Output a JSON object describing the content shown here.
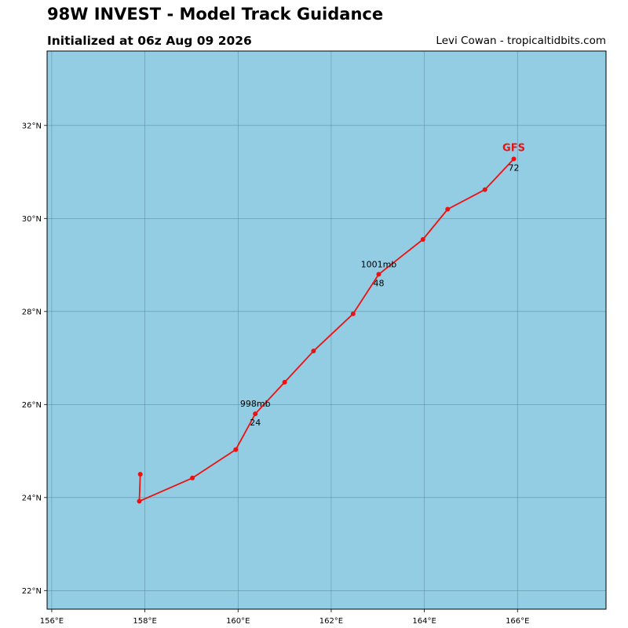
{
  "header": {
    "title": "98W INVEST - Model Track Guidance",
    "subtitle": "Initialized at 06z Aug 09 2026",
    "credit": "Levi Cowan - tropicaltidbits.com"
  },
  "colors": {
    "ocean": "#93cde3",
    "grid": "#4d7a8a",
    "track": "#ee1111",
    "frame": "#000000"
  },
  "chart_data": {
    "type": "line",
    "xlim": [
      155.9,
      167.9
    ],
    "ylim": [
      21.6,
      33.6
    ],
    "x_ticks": [
      156,
      158,
      160,
      162,
      164,
      166
    ],
    "y_ticks": [
      22,
      24,
      26,
      28,
      30,
      32
    ],
    "x_tick_labels": [
      "156°E",
      "158°E",
      "160°E",
      "162°E",
      "164°E",
      "166°E"
    ],
    "y_tick_labels": [
      "22°N",
      "24°N",
      "26°N",
      "28°N",
      "30°N",
      "32°N"
    ],
    "grid": true,
    "series": [
      {
        "name": "GFS",
        "lon": [
          157.9,
          157.88,
          159.02,
          159.95,
          160.37,
          161.0,
          161.62,
          162.47,
          163.02,
          163.97,
          164.5,
          165.3,
          165.92
        ],
        "lat": [
          24.5,
          23.92,
          24.42,
          25.03,
          25.8,
          26.48,
          27.15,
          27.95,
          28.8,
          29.55,
          30.2,
          30.62,
          31.28
        ],
        "annotations": [
          {
            "index": 4,
            "pressure": "998mb",
            "hour": "24"
          },
          {
            "index": 8,
            "pressure": "1001mb",
            "hour": "48"
          },
          {
            "index": 12,
            "hour": "72"
          }
        ]
      }
    ]
  }
}
